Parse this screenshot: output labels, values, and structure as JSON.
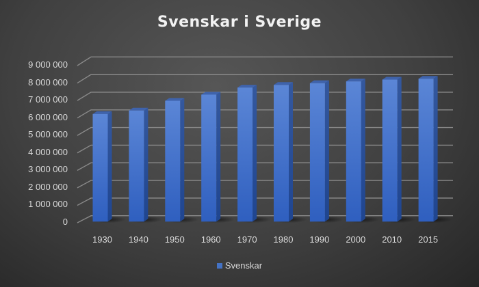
{
  "chart_data": {
    "type": "bar",
    "style": "3d-column",
    "title": "Svenskar  i Sverige",
    "xlabel": "",
    "ylabel": "",
    "categories": [
      "1930",
      "1940",
      "1950",
      "1960",
      "1970",
      "1980",
      "1990",
      "2000",
      "2010",
      "2015"
    ],
    "series": [
      {
        "name": "Svenskar",
        "color": "#4472c4",
        "values": [
          6100000,
          6300000,
          6850000,
          7200000,
          7600000,
          7750000,
          7850000,
          7950000,
          8050000,
          8100000
        ]
      }
    ],
    "yticks": [
      "0",
      "1 000 000",
      "2 000 000",
      "3 000 000",
      "4 000 000",
      "5 000 000",
      "6 000 000",
      "7 000 000",
      "8 000 000",
      "9 000 000"
    ],
    "ylim": [
      0,
      9000000
    ],
    "grid": true,
    "legend_position": "bottom"
  }
}
